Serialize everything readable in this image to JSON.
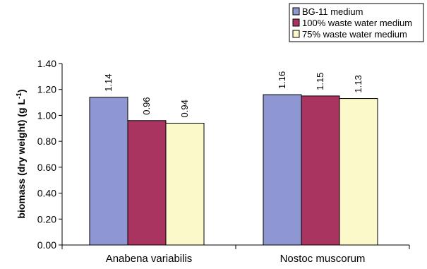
{
  "chart_data": {
    "type": "bar",
    "categories": [
      "Anabena variabilis",
      "Nostoc muscorum"
    ],
    "series": [
      {
        "name": "BG-11 medium",
        "values": [
          1.14,
          1.16
        ],
        "color": "#8e97d1"
      },
      {
        "name": "100% waste water medium",
        "values": [
          0.96,
          1.15
        ],
        "color": "#a8345f"
      },
      {
        "name": "75% waste water medium",
        "values": [
          0.94,
          1.13
        ],
        "color": "#fbf8c9"
      }
    ],
    "data_labels": [
      [
        "1.14",
        "0.96",
        "0.94"
      ],
      [
        "1.16",
        "1.15",
        "1.13"
      ]
    ],
    "ylabel_main": "biomass (dry weight) (g L",
    "ylabel_sup": "-1",
    "ylabel_close": ")",
    "ylim": [
      0,
      1.4
    ],
    "yticks": [
      0,
      0.2,
      0.4,
      0.6,
      0.8,
      1.0,
      1.2,
      1.4
    ],
    "ytick_labels": [
      "0.00",
      "0.20",
      "0.40",
      "0.60",
      "0.80",
      "1.00",
      "1.20",
      "1.40"
    ],
    "legend_position": "top-right",
    "grid": false
  }
}
